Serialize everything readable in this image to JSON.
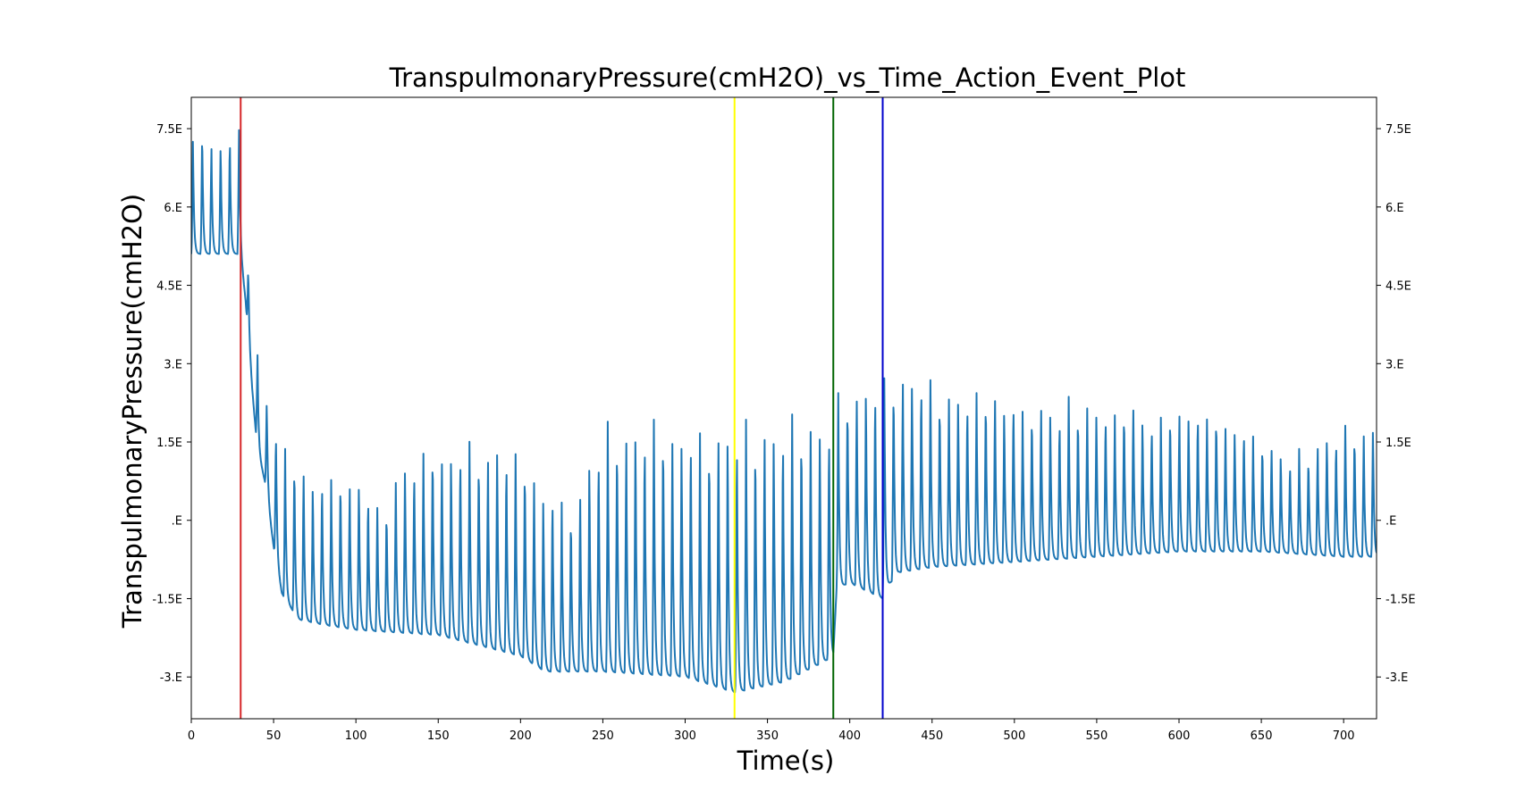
{
  "chart_data": {
    "type": "line",
    "title": "TranspulmonaryPressure(cmH2O)_vs_Time_Action_Event_Plot",
    "xlabel": "Time(s)",
    "ylabel": "TranspulmonaryPressure(cmH2O)",
    "xlim": [
      0,
      720
    ],
    "ylim": [
      -3.8,
      8.1
    ],
    "grid": false,
    "legend": "none",
    "x_ticks": [
      0,
      50,
      100,
      150,
      200,
      250,
      300,
      350,
      400,
      450,
      500,
      550,
      600,
      650,
      700
    ],
    "y_ticks": [
      {
        "value": 7.5,
        "label": "7.5E"
      },
      {
        "value": 6.0,
        "label": "6.E"
      },
      {
        "value": 4.5,
        "label": "4.5E"
      },
      {
        "value": 3.0,
        "label": "3.E"
      },
      {
        "value": 1.5,
        "label": "1.5E"
      },
      {
        "value": 0.0,
        "label": ".E"
      },
      {
        "value": -1.5,
        "label": "-1.5E"
      },
      {
        "value": -3.0,
        "label": "-3.E"
      }
    ],
    "series_color": "#1f77b4",
    "event_lines": [
      {
        "x": 30,
        "color": "#d62728"
      },
      {
        "x": 330,
        "color": "#ffff00"
      },
      {
        "x": 390,
        "color": "#006400"
      },
      {
        "x": 420,
        "color": "#0000cc"
      }
    ],
    "envelope": {
      "description_points": "breathing waveform between trough (min) and peak (max) per breath",
      "breath_period_s": 5.6,
      "peaks": [
        [
          0,
          7.2
        ],
        [
          5,
          7.6
        ],
        [
          15,
          7.3
        ],
        [
          25,
          7.5
        ],
        [
          30,
          7.5
        ],
        [
          33,
          5.7
        ],
        [
          37,
          4.0
        ],
        [
          42,
          2.7
        ],
        [
          48,
          2.1
        ],
        [
          55,
          1.6
        ],
        [
          65,
          1.0
        ],
        [
          80,
          0.9
        ],
        [
          100,
          0.9
        ],
        [
          115,
          0.3
        ],
        [
          135,
          1.3
        ],
        [
          150,
          1.4
        ],
        [
          170,
          1.5
        ],
        [
          200,
          1.4
        ],
        [
          215,
          0.7
        ],
        [
          230,
          0.3
        ],
        [
          250,
          1.8
        ],
        [
          270,
          1.9
        ],
        [
          300,
          1.9
        ],
        [
          330,
          1.8
        ],
        [
          350,
          1.9
        ],
        [
          390,
          2.1
        ],
        [
          395,
          2.6
        ],
        [
          420,
          2.6
        ],
        [
          440,
          2.8
        ],
        [
          460,
          2.6
        ],
        [
          480,
          2.5
        ],
        [
          500,
          2.3
        ],
        [
          550,
          2.2
        ],
        [
          600,
          2.1
        ],
        [
          640,
          2.0
        ],
        [
          660,
          1.2
        ],
        [
          680,
          1.5
        ],
        [
          700,
          1.9
        ],
        [
          720,
          1.8
        ]
      ],
      "troughs": [
        [
          0,
          5.1
        ],
        [
          30,
          5.1
        ],
        [
          33,
          4.2
        ],
        [
          37,
          2.5
        ],
        [
          40,
          1.4
        ],
        [
          45,
          0.7
        ],
        [
          50,
          -0.5
        ],
        [
          55,
          -1.4
        ],
        [
          65,
          -1.9
        ],
        [
          80,
          -2.0
        ],
        [
          100,
          -2.1
        ],
        [
          150,
          -2.2
        ],
        [
          200,
          -2.6
        ],
        [
          215,
          -2.9
        ],
        [
          250,
          -2.9
        ],
        [
          300,
          -3.0
        ],
        [
          330,
          -3.3
        ],
        [
          360,
          -3.1
        ],
        [
          385,
          -2.7
        ],
        [
          390,
          -2.6
        ],
        [
          392,
          -1.3
        ],
        [
          400,
          -1.2
        ],
        [
          420,
          -1.5
        ],
        [
          422,
          -1.3
        ],
        [
          430,
          -1.0
        ],
        [
          450,
          -0.9
        ],
        [
          500,
          -0.8
        ],
        [
          550,
          -0.7
        ],
        [
          600,
          -0.6
        ],
        [
          650,
          -0.6
        ],
        [
          700,
          -0.7
        ],
        [
          720,
          -0.7
        ]
      ]
    }
  }
}
